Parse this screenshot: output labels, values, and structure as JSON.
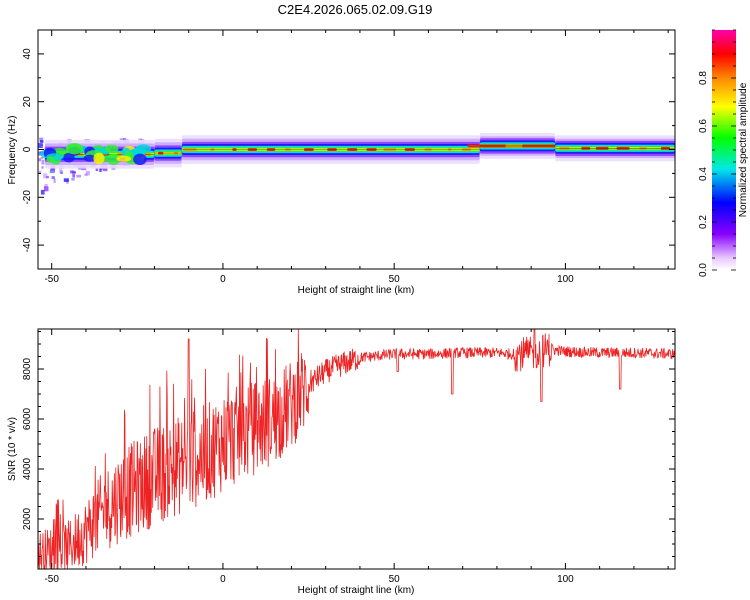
{
  "title": "C2E4.2026.065.02.09.G19",
  "chart_data": [
    {
      "type": "heatmap",
      "xlabel": "Height of straight line (km)",
      "ylabel": "Frequency (Hz)",
      "xlim": [
        -54,
        132
      ],
      "ylim": [
        -50,
        50
      ],
      "xticks": [
        -50,
        0,
        50,
        100
      ],
      "yticks": [
        -40,
        -20,
        0,
        20,
        40
      ],
      "tones": [
        {
          "x": [
            -52,
            -20
          ],
          "y": -2
        },
        {
          "x": [
            -20,
            -12
          ],
          "y": -1.5
        },
        {
          "x": [
            -12,
            75
          ],
          "y": 0
        },
        {
          "x": [
            75,
            97
          ],
          "y": 1.5
        },
        {
          "x": [
            97,
            132
          ],
          "y": 0.5
        }
      ],
      "scatter_region": {
        "x": [
          -54,
          -22
        ],
        "y": [
          -18,
          5
        ]
      },
      "colorbar": {
        "label": "Normalized spectral amplitude",
        "range": [
          0,
          1
        ],
        "ticks": [
          0.0,
          0.2,
          0.4,
          0.6,
          0.8
        ],
        "colors": [
          "#ffffff",
          "#8800ff",
          "#0000ff",
          "#00e8e8",
          "#00ff00",
          "#ffff00",
          "#ff8800",
          "#ff0000",
          "#ff00aa"
        ]
      },
      "grid": false
    },
    {
      "type": "line",
      "xlabel": "Height of straight line (km)",
      "ylabel": "SNR (10 * v/v)",
      "xlim": [
        -54,
        132
      ],
      "ylim": [
        0,
        9600
      ],
      "xticks": [
        -50,
        0,
        50,
        100
      ],
      "yticks": [
        2000,
        4000,
        6000,
        8000
      ],
      "color": "#ee2222",
      "envelope": {
        "x": [
          -54,
          -45,
          -40,
          -35,
          -30,
          -25,
          -20,
          -15,
          -10,
          -5,
          0,
          5,
          10,
          15,
          20,
          25,
          30,
          35,
          40,
          50,
          60,
          70,
          80,
          85,
          90,
          95,
          100,
          110,
          120,
          132
        ],
        "y": [
          600,
          900,
          1500,
          2300,
          2900,
          3300,
          3700,
          4000,
          4300,
          4600,
          5100,
          5400,
          5700,
          6000,
          6600,
          7400,
          7900,
          8200,
          8450,
          8600,
          8600,
          8650,
          8650,
          8600,
          8600,
          8800,
          8700,
          8650,
          8650,
          8600
        ]
      },
      "dips": [
        {
          "x": 51,
          "y": 7900
        },
        {
          "x": 67,
          "y": 7000
        },
        {
          "x": 93,
          "y": 6700
        },
        {
          "x": 116,
          "y": 7200
        }
      ],
      "spikes": [
        {
          "x": -10,
          "y": 9200
        },
        {
          "x": 91,
          "y": 9600
        }
      ],
      "grid": false
    }
  ]
}
